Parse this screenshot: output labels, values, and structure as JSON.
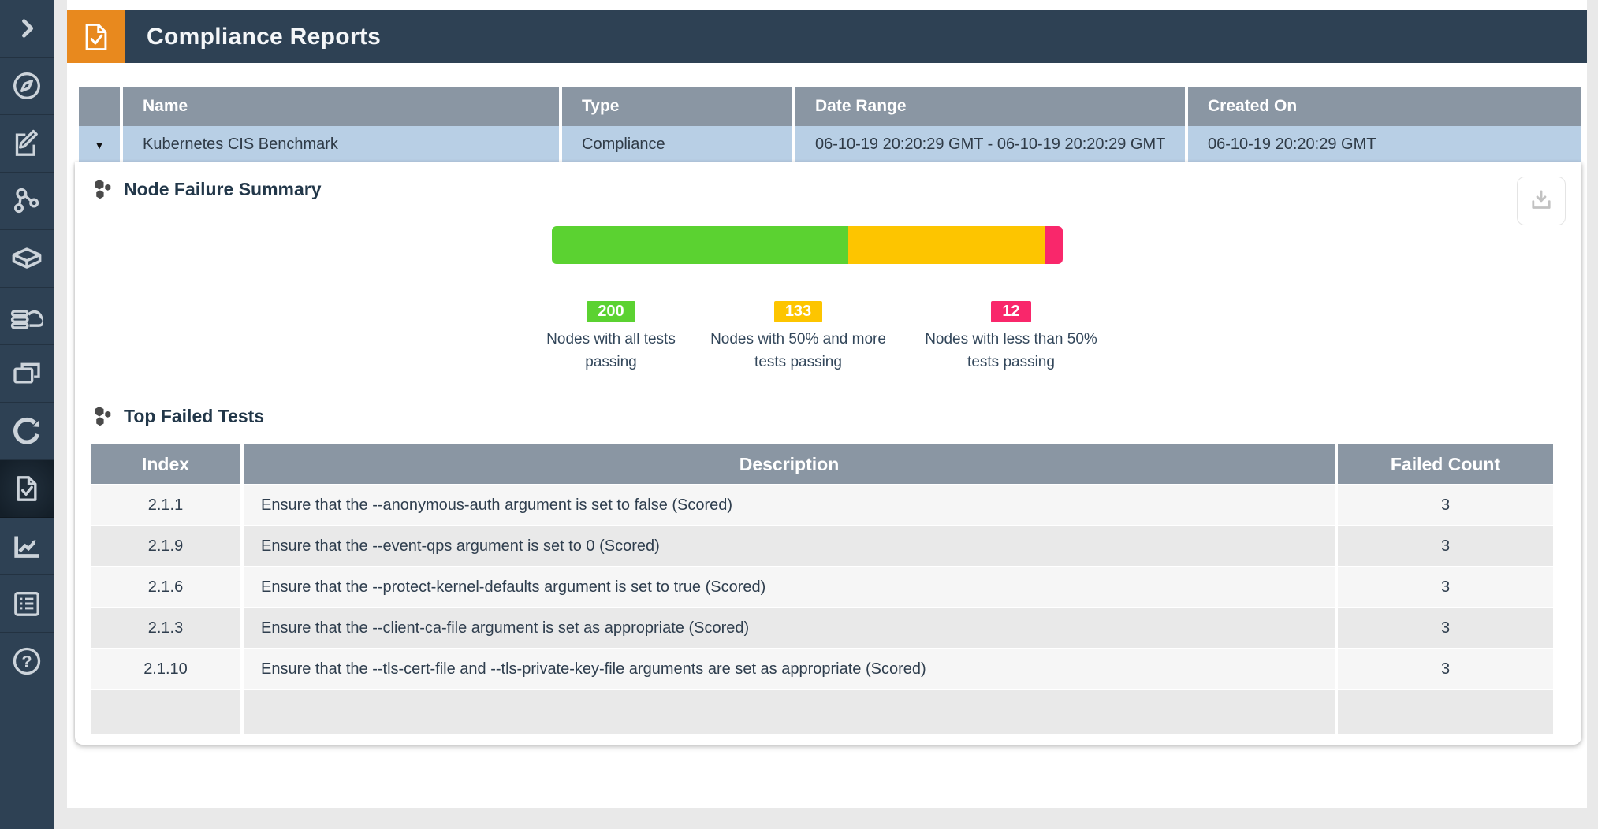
{
  "header": {
    "title": "Compliance Reports",
    "icon": "document-check-icon"
  },
  "colors": {
    "navy": "#2e4154",
    "orange_accent": "#e8891e",
    "table_header_gray": "#8a96a3",
    "selected_row_blue": "#b8cfe5"
  },
  "sidebar": {
    "active_index": 8,
    "items": [
      {
        "icon": "chevron-right-icon"
      },
      {
        "icon": "compass-icon"
      },
      {
        "icon": "document-edit-icon"
      },
      {
        "icon": "topology-icon"
      },
      {
        "icon": "cube-icon"
      },
      {
        "icon": "cloud-database-icon"
      },
      {
        "icon": "windows-icon"
      },
      {
        "icon": "sync-icon"
      },
      {
        "icon": "document-check-icon"
      },
      {
        "icon": "line-chart-icon"
      },
      {
        "icon": "list-document-icon"
      },
      {
        "icon": "help-icon"
      }
    ]
  },
  "report_table": {
    "expander": "▼",
    "columns": [
      "Name",
      "Type",
      "Date Range",
      "Created On"
    ],
    "rows": [
      {
        "name": "Kubernetes CIS Benchmark",
        "type": "Compliance",
        "date_range": "06-10-19 20:20:29 GMT - 06-10-19 20:20:29 GMT",
        "created_on": "06-10-19 20:20:29 GMT"
      }
    ]
  },
  "node_failure_summary": {
    "title": "Node Failure Summary"
  },
  "chart_data": {
    "type": "bar",
    "title": "Node Failure Summary",
    "layout": "single horizontal stacked bar with count badges in legend below",
    "total": 345,
    "series": [
      {
        "name": "Nodes with all tests passing",
        "value": 200,
        "color": "#5bd231"
      },
      {
        "name": "Nodes with 50% and more tests passing",
        "value": 133,
        "color": "#fdc500"
      },
      {
        "name": "Nodes with less than 50% tests passing",
        "value": 12,
        "color": "#f9276b"
      }
    ]
  },
  "top_failed_tests": {
    "title": "Top Failed Tests",
    "columns": [
      "Index",
      "Description",
      "Failed Count"
    ],
    "rows": [
      {
        "index": "2.1.1",
        "description": "Ensure that the --anonymous-auth argument is set to false (Scored)",
        "failed_count": "3"
      },
      {
        "index": "2.1.9",
        "description": "Ensure that the --event-qps argument is set to 0 (Scored)",
        "failed_count": "3"
      },
      {
        "index": "2.1.6",
        "description": "Ensure that the --protect-kernel-defaults argument is set to true (Scored)",
        "failed_count": "3"
      },
      {
        "index": "2.1.3",
        "description": "Ensure that the --client-ca-file argument is set as appropriate (Scored)",
        "failed_count": "3"
      },
      {
        "index": "2.1.10",
        "description": "Ensure that the --tls-cert-file and --tls-private-key-file arguments are set as appropriate (Scored)",
        "failed_count": "3"
      }
    ]
  }
}
